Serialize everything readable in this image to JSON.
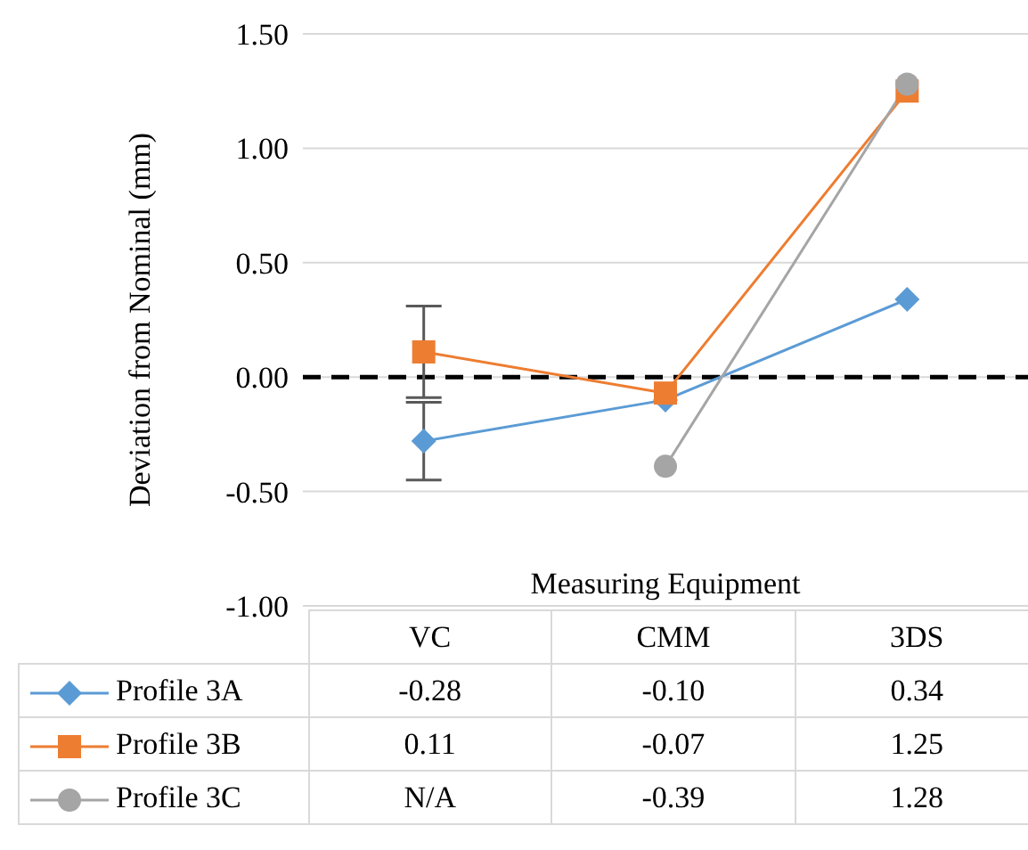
{
  "chart_data": {
    "type": "line",
    "xlabel": "Measuring Equipment",
    "ylabel": "Deviation from Nominal (mm)",
    "categories": [
      "VC",
      "CMM",
      "3DS"
    ],
    "series": [
      {
        "name": "Profile 3A",
        "color": "#5b9bd5",
        "marker": "diamond",
        "values": [
          -0.28,
          -0.1,
          0.34
        ],
        "errors": [
          0.17,
          null,
          null
        ],
        "value_labels": [
          "-0.28",
          "-0.10",
          "0.34"
        ]
      },
      {
        "name": "Profile 3B",
        "color": "#ed7d31",
        "marker": "square",
        "values": [
          0.11,
          -0.07,
          1.25
        ],
        "errors": [
          0.2,
          null,
          null
        ],
        "value_labels": [
          "0.11",
          "-0.07",
          "1.25"
        ]
      },
      {
        "name": "Profile 3C",
        "color": "#a5a5a5",
        "marker": "circle",
        "values": [
          null,
          -0.39,
          1.28
        ],
        "value_labels": [
          "N/A",
          "-0.39",
          "1.28"
        ]
      }
    ],
    "ylim": [
      -1,
      1.5
    ],
    "yticks": [
      {
        "value": -1,
        "label": "-1.00"
      },
      {
        "value": -0.5,
        "label": "-0.50"
      },
      {
        "value": 0,
        "label": "0.00"
      },
      {
        "value": 0.5,
        "label": "0.50"
      },
      {
        "value": 1,
        "label": "1.00"
      },
      {
        "value": 1.5,
        "label": "1.50"
      }
    ],
    "ref_lines": [
      {
        "axis": "y",
        "value": 0,
        "color": "#000000",
        "line_style": "dashed"
      }
    ],
    "grid": "y",
    "legend": "bottom",
    "line_style": "solid"
  }
}
